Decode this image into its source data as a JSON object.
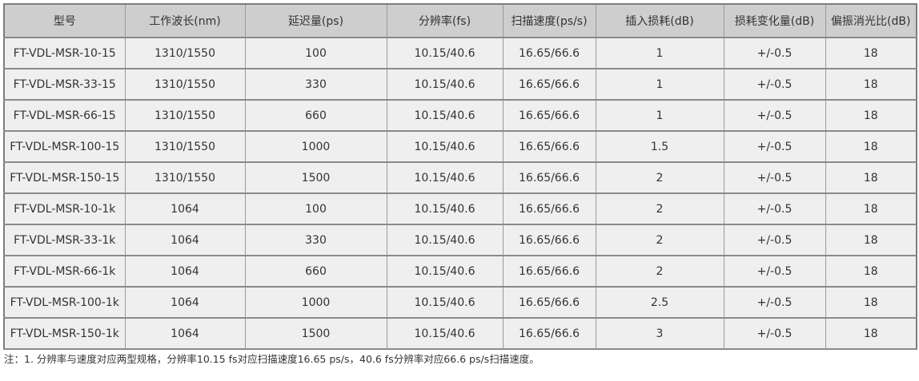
{
  "table": {
    "headers": [
      "型号",
      "工作波长(nm)",
      "延迟量(ps)",
      "分辨率(fs)",
      "扫描速度(ps/s)",
      "插入损耗(dB)",
      "损耗变化量(dB)",
      "偏振消光比(dB)"
    ],
    "rows": [
      [
        "FT-VDL-MSR-10-15",
        "1310/1550",
        "100",
        "10.15/40.6",
        "16.65/66.6",
        "1",
        "+/-0.5",
        "18"
      ],
      [
        "FT-VDL-MSR-33-15",
        "1310/1550",
        "330",
        "10.15/40.6",
        "16.65/66.6",
        "1",
        "+/-0.5",
        "18"
      ],
      [
        "FT-VDL-MSR-66-15",
        "1310/1550",
        "660",
        "10.15/40.6",
        "16.65/66.6",
        "1",
        "+/-0.5",
        "18"
      ],
      [
        "FT-VDL-MSR-100-15",
        "1310/1550",
        "1000",
        "10.15/40.6",
        "16.65/66.6",
        "1.5",
        "+/-0.5",
        "18"
      ],
      [
        "FT-VDL-MSR-150-15",
        "1310/1550",
        "1500",
        "10.15/40.6",
        "16.65/66.6",
        "2",
        "+/-0.5",
        "18"
      ],
      [
        "FT-VDL-MSR-10-1k",
        "1064",
        "100",
        "10.15/40.6",
        "16.65/66.6",
        "2",
        "+/-0.5",
        "18"
      ],
      [
        "FT-VDL-MSR-33-1k",
        "1064",
        "330",
        "10.15/40.6",
        "16.65/66.6",
        "2",
        "+/-0.5",
        "18"
      ],
      [
        "FT-VDL-MSR-66-1k",
        "1064",
        "660",
        "10.15/40.6",
        "16.65/66.6",
        "2",
        "+/-0.5",
        "18"
      ],
      [
        "FT-VDL-MSR-100-1k",
        "1064",
        "1000",
        "10.15/40.6",
        "16.65/66.6",
        "2.5",
        "+/-0.5",
        "18"
      ],
      [
        "FT-VDL-MSR-150-1k",
        "1064",
        "1500",
        "10.15/40.6",
        "16.65/66.6",
        "3",
        "+/-0.5",
        "18"
      ]
    ]
  },
  "note": "注：1. 分辨率与速度对应两型规格，分辨率10.15 fs对应扫描速度16.65 ps/s，40.6 fs分辨率对应66.6 ps/s扫描速度。",
  "colors": {
    "header_bg": "#cecece",
    "row_bg": "#efefef",
    "border_vertical": "#9a9a9a",
    "border_horizontal": "#8a8a8a",
    "outer_border": "#7d7d7d",
    "text": "#333333"
  }
}
